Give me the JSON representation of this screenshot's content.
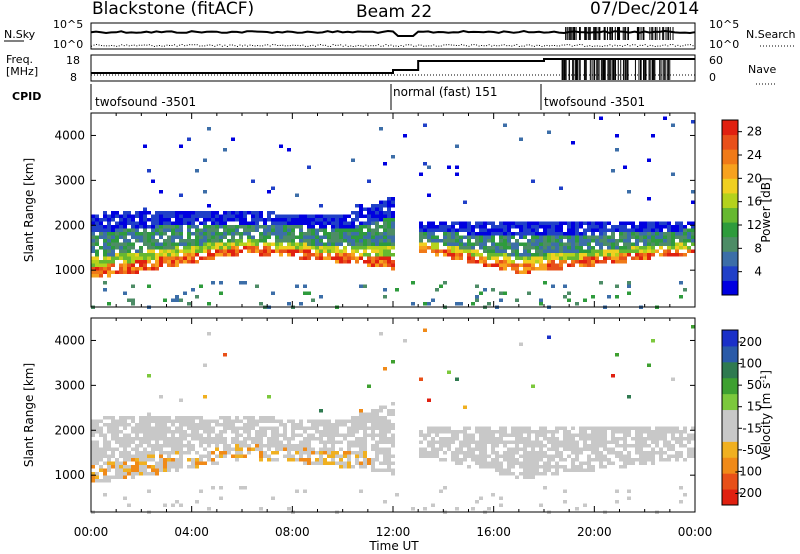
{
  "header": {
    "station": "Blackstone (fitACF)",
    "beam": "Beam 22",
    "date": "07/Dec/2014"
  },
  "strip_labels": {
    "nsky": "N.Sky",
    "nsky_hi": "10^5",
    "nsky_lo": "10^0",
    "nsearch": "N.Search",
    "nsearch_hi": "10^5",
    "nsearch_lo": "10^0",
    "freq": "Freq.",
    "freq_unit": "[MHz]",
    "freq_hi": "18",
    "freq_lo": "8",
    "nave": "Nave",
    "nave_hi": "60",
    "nave_lo": "0",
    "cpid": "CPID"
  },
  "cpid_segments": [
    {
      "label": "twofsound -3501",
      "start_hour": 0
    },
    {
      "label": "normal (fast) 151",
      "start_hour": 12
    },
    {
      "label": "twofsound -3501",
      "start_hour": 18
    }
  ],
  "chart_data": [
    {
      "type": "heatmap",
      "name": "Power",
      "xlabel": "Time UT",
      "ylabel": "Slant Range [km]",
      "x_ticks": [
        "00:00",
        "04:00",
        "08:00",
        "12:00",
        "16:00",
        "20:00",
        "00:00"
      ],
      "xlim_hours": [
        0,
        24
      ],
      "y_ticks": [
        1000,
        2000,
        3000,
        4000
      ],
      "ylim": [
        180,
        4500
      ],
      "colorbar": {
        "label": "Power [dB]",
        "ticks": [
          4,
          8,
          12,
          16,
          20,
          24,
          28
        ],
        "range": [
          0,
          30
        ],
        "colors": [
          "#0000e0",
          "#2040c8",
          "#3c6ea8",
          "#4d8c66",
          "#2e9b3c",
          "#66b830",
          "#b4d21c",
          "#f0d020",
          "#f7a21e",
          "#f07a18",
          "#e8501a",
          "#e02010"
        ]
      },
      "layers": [
        {
          "from_hour": 0.0,
          "to_hour": 2.0,
          "base_km": [
            900,
            1050
          ],
          "top_km": [
            2300,
            2400
          ]
        },
        {
          "from_hour": 2.0,
          "to_hour": 6.0,
          "base_km": [
            1050,
            1450
          ],
          "top_km": [
            2400,
            2350
          ]
        },
        {
          "from_hour": 6.0,
          "to_hour": 10.0,
          "base_km": [
            1450,
            1250
          ],
          "top_km": [
            2350,
            2250
          ]
        },
        {
          "from_hour": 10.0,
          "to_hour": 12.0,
          "base_km": [
            1250,
            1100
          ],
          "top_km": [
            2250,
            2700
          ]
        },
        {
          "from_hour": 13.0,
          "to_hour": 17.0,
          "base_km": [
            1500,
            1000
          ],
          "top_km": [
            2100,
            2100
          ]
        },
        {
          "from_hour": 17.0,
          "to_hour": 24.0,
          "base_km": [
            1000,
            1450
          ],
          "top_km": [
            2100,
            2150
          ]
        }
      ]
    },
    {
      "type": "heatmap",
      "name": "Velocity",
      "xlabel": "Time UT",
      "ylabel": "Slant Range [km]",
      "x_ticks": [
        "00:00",
        "04:00",
        "08:00",
        "12:00",
        "16:00",
        "20:00",
        "00:00"
      ],
      "xlim_hours": [
        0,
        24
      ],
      "y_ticks": [
        1000,
        2000,
        3000,
        4000
      ],
      "ylim": [
        180,
        4500
      ],
      "colorbar": {
        "label": "Velocity [m s^-1]",
        "ticks": [
          200,
          100,
          50,
          15,
          -15,
          -50,
          -100,
          -200
        ],
        "colors": [
          "#1a30c8",
          "#2a5aa8",
          "#2f7a50",
          "#3ea030",
          "#7cc83c",
          "#c8c8c8",
          "#c8c8c8",
          "#f0b020",
          "#f08a18",
          "#e85018",
          "#e02010"
        ]
      }
    }
  ]
}
